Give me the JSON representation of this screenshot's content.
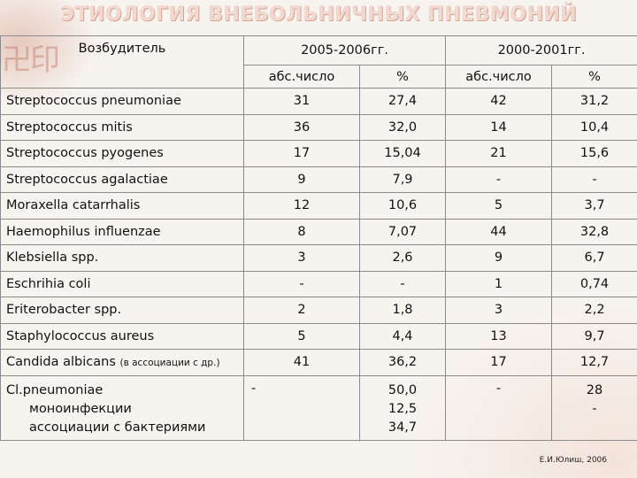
{
  "title": "ЭТИОЛОГИЯ ВНЕБОЛЬНИЧНЫХ ПНЕВМОНИЙ",
  "header": {
    "pathogen": "Возбудитель",
    "period1": "2005-2006гг.",
    "period2": "2000-2001гг.",
    "abs": "абс.число",
    "pct": "%"
  },
  "rows": [
    {
      "name": "Streptococcus pneumoniae",
      "a1": "31",
      "p1": "27,4",
      "a2": "42",
      "p2": "31,2"
    },
    {
      "name": "Streptococcus mitis",
      "a1": "36",
      "p1": "32,0",
      "a2": "14",
      "p2": "10,4"
    },
    {
      "name": "Streptococcus pyogenes",
      "a1": "17",
      "p1": "15,04",
      "a2": "21",
      "p2": "15,6"
    },
    {
      "name": "Streptococcus agalactiae",
      "a1": "9",
      "p1": "7,9",
      "a2": "-",
      "p2": "-"
    },
    {
      "name": "Moraxella catarrhalis",
      "a1": "12",
      "p1": "10,6",
      "a2": "5",
      "p2": "3,7"
    },
    {
      "name": "Haemophilus influenzae",
      "a1": "8",
      "p1": "7,07",
      "a2": "44",
      "p2": "32,8"
    },
    {
      "name": "Klebsiella spp.",
      "a1": "3",
      "p1": "2,6",
      "a2": "9",
      "p2": "6,7"
    },
    {
      "name": "Eschrihia coli",
      "a1": "-",
      "p1": "-",
      "a2": "1",
      "p2": "0,74"
    },
    {
      "name": "Eriterobacter spp.",
      "a1": "2",
      "p1": "1,8",
      "a2": "3",
      "p2": "2,2"
    },
    {
      "name": "Staphylococcus aureus",
      "a1": "5",
      "p1": "4,4",
      "a2": "13",
      "p2": "9,7"
    },
    {
      "name": "Candida albicans",
      "note": "(в ассоциации с др.)",
      "a1": "41",
      "p1": "36,2",
      "a2": "17",
      "p2": "12,7"
    }
  ],
  "last_row": {
    "name": "Cl.pneumoniae",
    "sub1": "моноинфекции",
    "sub2": "ассоциации с бактериями",
    "a1": "-",
    "p1_line1": "50,0",
    "p1_line2": "12,5",
    "p1_line3": "34,7",
    "a2": "-",
    "p2_line1": "28",
    "p2_line2": "-"
  },
  "credit": "Е.И.Юлиш, 2006"
}
